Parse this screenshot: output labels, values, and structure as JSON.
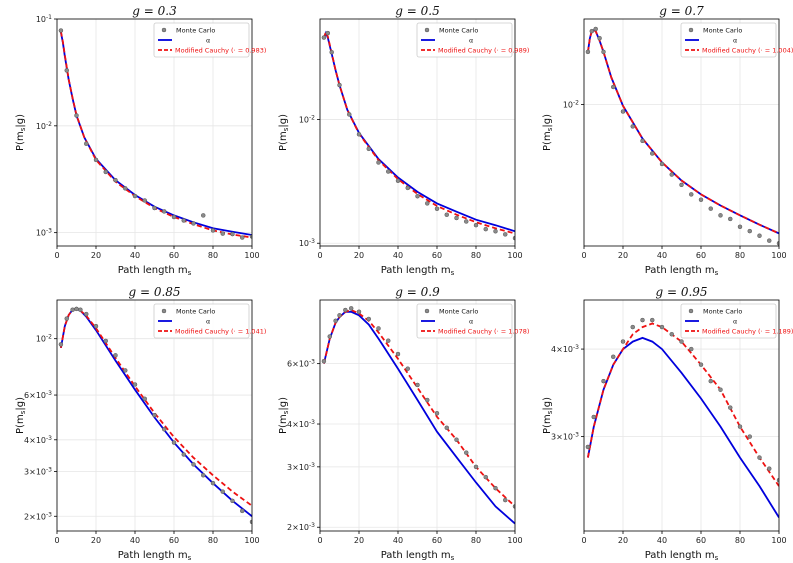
{
  "chart_data": [
    {
      "type": "line",
      "title": "g = 0.3",
      "g": 0.3,
      "xlabel": "Path length m_s",
      "ylabel": "P(m_s|g)",
      "xlim": [
        0,
        100
      ],
      "ylim": [
        0.00075,
        0.1
      ],
      "yscale": "log",
      "xticks": [
        0,
        20,
        40,
        60,
        80,
        100
      ],
      "yticks": [
        {
          "value": 0.1,
          "label": "10^-1"
        },
        {
          "value": 0.01,
          "label": "10^-2"
        },
        {
          "value": 0.001,
          "label": "10^-3"
        }
      ],
      "legend": {
        "position": "top-right",
        "entries": [
          "Monte Carlo",
          "α",
          "Modified Cauchy (· = 0.983)"
        ]
      },
      "series": [
        {
          "name": "α",
          "color": "#0000dd",
          "style": "solid",
          "x": [
            2,
            3,
            4,
            6,
            8,
            10,
            14,
            20,
            30,
            40,
            50,
            60,
            70,
            80,
            90,
            100
          ],
          "values": [
            0.075,
            0.06,
            0.045,
            0.027,
            0.018,
            0.0125,
            0.0078,
            0.0049,
            0.0031,
            0.00225,
            0.00175,
            0.00145,
            0.00125,
            0.0011,
            0.00102,
            0.00095
          ]
        },
        {
          "name": "Modified Cauchy (· = 0.983)",
          "color": "#ee1111",
          "style": "dashed",
          "x": [
            2,
            3,
            4,
            6,
            8,
            10,
            14,
            20,
            30,
            40,
            50,
            60,
            70,
            80,
            90,
            100
          ],
          "values": [
            0.076,
            0.061,
            0.046,
            0.0272,
            0.0182,
            0.0126,
            0.0078,
            0.0048,
            0.003,
            0.0022,
            0.0017,
            0.0014,
            0.0012,
            0.00105,
            0.00096,
            0.0009
          ]
        },
        {
          "name": "Monte Carlo",
          "color": "#777777",
          "style": "markers",
          "x": [
            2,
            5,
            10,
            15,
            20,
            25,
            30,
            35,
            40,
            45,
            50,
            55,
            60,
            65,
            70,
            75,
            80,
            85,
            90,
            95,
            100
          ],
          "values": [
            0.078,
            0.033,
            0.0125,
            0.0068,
            0.0048,
            0.0037,
            0.0031,
            0.0026,
            0.0022,
            0.002,
            0.0017,
            0.00158,
            0.0014,
            0.0013,
            0.00122,
            0.00145,
            0.00105,
            0.00098,
            0.00097,
            0.0009,
            0.00092
          ]
        }
      ]
    },
    {
      "type": "line",
      "title": "g = 0.5",
      "g": 0.5,
      "xlabel": "Path length m_s",
      "ylabel": "P(m_s|g)",
      "xlim": [
        0,
        100
      ],
      "ylim": [
        0.00095,
        0.065
      ],
      "yscale": "log",
      "xticks": [
        0,
        20,
        40,
        60,
        80,
        100
      ],
      "yticks": [
        {
          "value": 0.01,
          "label": "10^-2"
        },
        {
          "value": 0.001,
          "label": "10^-3"
        }
      ],
      "legend": {
        "position": "top-right",
        "entries": [
          "Monte Carlo",
          "α",
          "Modified Cauchy (· = 0.989)"
        ]
      },
      "series": [
        {
          "name": "α",
          "color": "#0000dd",
          "style": "solid",
          "x": [
            2,
            3,
            4,
            6,
            8,
            10,
            14,
            20,
            30,
            40,
            50,
            60,
            70,
            80,
            90,
            100
          ],
          "values": [
            0.045,
            0.05,
            0.046,
            0.034,
            0.025,
            0.019,
            0.012,
            0.0078,
            0.0048,
            0.0034,
            0.0026,
            0.0021,
            0.0018,
            0.00155,
            0.0014,
            0.00125
          ]
        },
        {
          "name": "Modified Cauchy (· = 0.989)",
          "color": "#ee1111",
          "style": "dashed",
          "x": [
            2,
            3,
            4,
            6,
            8,
            10,
            14,
            20,
            30,
            40,
            50,
            60,
            70,
            80,
            90,
            100
          ],
          "values": [
            0.046,
            0.051,
            0.047,
            0.0345,
            0.025,
            0.019,
            0.012,
            0.0077,
            0.0047,
            0.0033,
            0.0025,
            0.002,
            0.0017,
            0.00148,
            0.00132,
            0.0012
          ]
        },
        {
          "name": "Monte Carlo",
          "color": "#777777",
          "style": "markers",
          "x": [
            2,
            4,
            6,
            10,
            15,
            20,
            25,
            30,
            35,
            40,
            45,
            50,
            55,
            60,
            65,
            70,
            75,
            80,
            85,
            90,
            95,
            100
          ],
          "values": [
            0.046,
            0.05,
            0.035,
            0.019,
            0.011,
            0.0076,
            0.0058,
            0.0045,
            0.0038,
            0.0032,
            0.0028,
            0.0024,
            0.0021,
            0.0019,
            0.0017,
            0.0016,
            0.0015,
            0.0014,
            0.0013,
            0.00125,
            0.00118,
            0.0011
          ]
        }
      ]
    },
    {
      "type": "line",
      "title": "g = 0.7",
      "g": 0.7,
      "xlabel": "Path length m_s",
      "ylabel": "P(m_s|g)",
      "xlim": [
        0,
        100
      ],
      "ylim": [
        0.0012,
        0.036
      ],
      "yscale": "log",
      "xticks": [
        0,
        20,
        40,
        60,
        80,
        100
      ],
      "yticks": [
        {
          "value": 0.01,
          "label": "10^-2"
        }
      ],
      "legend": {
        "position": "top-right",
        "entries": [
          "Monte Carlo",
          "α",
          "Modified Cauchy (· = 1.004)"
        ]
      },
      "series": [
        {
          "name": "α",
          "color": "#0000dd",
          "style": "solid",
          "x": [
            2,
            3,
            4,
            5,
            6,
            8,
            10,
            14,
            20,
            30,
            40,
            50,
            60,
            70,
            80,
            90,
            100
          ],
          "values": [
            0.022,
            0.027,
            0.03,
            0.0305,
            0.03,
            0.026,
            0.022,
            0.015,
            0.0098,
            0.006,
            0.0042,
            0.0032,
            0.0026,
            0.0022,
            0.0019,
            0.00165,
            0.00145
          ]
        },
        {
          "name": "Modified Cauchy (· = 1.004)",
          "color": "#ee1111",
          "style": "dashed",
          "x": [
            2,
            3,
            4,
            5,
            6,
            8,
            10,
            14,
            20,
            30,
            40,
            50,
            60,
            70,
            80,
            90,
            100
          ],
          "values": [
            0.022,
            0.027,
            0.03,
            0.0305,
            0.03,
            0.026,
            0.022,
            0.015,
            0.0098,
            0.006,
            0.0042,
            0.0032,
            0.0026,
            0.0022,
            0.0019,
            0.00165,
            0.00145
          ]
        },
        {
          "name": "Monte Carlo",
          "color": "#777777",
          "style": "markers",
          "x": [
            2,
            4,
            6,
            8,
            10,
            15,
            20,
            25,
            30,
            35,
            40,
            45,
            50,
            55,
            60,
            65,
            70,
            75,
            80,
            85,
            90,
            95,
            100
          ],
          "values": [
            0.022,
            0.03,
            0.031,
            0.027,
            0.022,
            0.013,
            0.009,
            0.0072,
            0.0058,
            0.0048,
            0.0041,
            0.0035,
            0.003,
            0.0026,
            0.0024,
            0.0021,
            0.0019,
            0.0018,
            0.0016,
            0.0015,
            0.0014,
            0.0013,
            0.00125
          ]
        }
      ]
    },
    {
      "type": "line",
      "title": "g = 0.85",
      "g": 0.85,
      "xlabel": "Path length m_s",
      "ylabel": "P(m_s|g)",
      "xlim": [
        0,
        100
      ],
      "ylim": [
        0.00175,
        0.0142
      ],
      "yscale": "log",
      "xticks": [
        0,
        20,
        40,
        60,
        80,
        100
      ],
      "yticks": [
        {
          "value": 0.01,
          "label": "10^-2"
        },
        {
          "value": 0.006,
          "label": "6×10^-3"
        },
        {
          "value": 0.004,
          "label": "4×10^-3"
        },
        {
          "value": 0.003,
          "label": "3×10^-3"
        },
        {
          "value": 0.002,
          "label": "2×10^-3"
        }
      ],
      "legend": {
        "position": "top-right",
        "entries": [
          "Monte Carlo",
          "α",
          "Modified Cauchy (· = 1.041)"
        ]
      },
      "series": [
        {
          "name": "α",
          "color": "#0000dd",
          "style": "solid",
          "x": [
            2,
            4,
            6,
            8,
            10,
            12,
            15,
            20,
            30,
            40,
            50,
            60,
            70,
            80,
            90,
            100
          ],
          "values": [
            0.0092,
            0.0112,
            0.0124,
            0.013,
            0.0131,
            0.0129,
            0.0122,
            0.0108,
            0.0082,
            0.0063,
            0.0049,
            0.0039,
            0.0032,
            0.0027,
            0.0023,
            0.002
          ]
        },
        {
          "name": "Modified Cauchy (· = 1.041)",
          "color": "#ee1111",
          "style": "dashed",
          "x": [
            2,
            4,
            6,
            8,
            10,
            12,
            15,
            20,
            30,
            40,
            50,
            60,
            70,
            80,
            90,
            100
          ],
          "values": [
            0.0092,
            0.0112,
            0.0124,
            0.013,
            0.0131,
            0.0129,
            0.0123,
            0.011,
            0.0084,
            0.0065,
            0.0051,
            0.0041,
            0.0034,
            0.0029,
            0.0025,
            0.0022
          ]
        },
        {
          "name": "Monte Carlo",
          "color": "#777777",
          "style": "markers",
          "x": [
            2,
            5,
            8,
            10,
            12,
            15,
            20,
            25,
            30,
            35,
            40,
            45,
            50,
            55,
            60,
            65,
            70,
            75,
            80,
            85,
            90,
            95,
            100
          ],
          "values": [
            0.0095,
            0.012,
            0.013,
            0.0131,
            0.013,
            0.0125,
            0.0112,
            0.0098,
            0.0086,
            0.0075,
            0.0066,
            0.0058,
            0.005,
            0.0044,
            0.0039,
            0.0035,
            0.0032,
            0.0029,
            0.0027,
            0.0025,
            0.0023,
            0.0021,
            0.0019
          ]
        }
      ]
    },
    {
      "type": "line",
      "title": "g = 0.9",
      "g": 0.9,
      "xlabel": "Path length m_s",
      "ylabel": "P(m_s|g)",
      "xlim": [
        0,
        100
      ],
      "ylim": [
        0.00195,
        0.0092
      ],
      "yscale": "log",
      "xticks": [
        0,
        20,
        40,
        60,
        80,
        100
      ],
      "yticks": [
        {
          "value": 0.006,
          "label": "6×10^-3"
        },
        {
          "value": 0.004,
          "label": "4×10^-3"
        },
        {
          "value": 0.003,
          "label": "3×10^-3"
        },
        {
          "value": 0.002,
          "label": "2×10^-3"
        }
      ],
      "legend": {
        "position": "top-right",
        "entries": [
          "Monte Carlo",
          "α",
          "Modified Cauchy (· = 1.078)"
        ]
      },
      "series": [
        {
          "name": "α",
          "color": "#0000dd",
          "style": "solid",
          "x": [
            2,
            5,
            8,
            10,
            13,
            16,
            20,
            25,
            30,
            40,
            50,
            60,
            70,
            80,
            90,
            100
          ],
          "values": [
            0.006,
            0.0071,
            0.0079,
            0.0082,
            0.0085,
            0.0085,
            0.0083,
            0.0078,
            0.0071,
            0.0058,
            0.0047,
            0.0038,
            0.0032,
            0.0027,
            0.0023,
            0.00205
          ]
        },
        {
          "name": "Modified Cauchy (· = 1.078)",
          "color": "#ee1111",
          "style": "dashed",
          "x": [
            2,
            5,
            8,
            10,
            13,
            16,
            20,
            25,
            30,
            40,
            50,
            60,
            70,
            80,
            90,
            100
          ],
          "values": [
            0.006,
            0.0071,
            0.0079,
            0.0082,
            0.0085,
            0.0086,
            0.0084,
            0.008,
            0.0074,
            0.0062,
            0.0051,
            0.0042,
            0.0036,
            0.003,
            0.0026,
            0.0023
          ]
        },
        {
          "name": "Monte Carlo",
          "color": "#777777",
          "style": "markers",
          "x": [
            2,
            5,
            8,
            10,
            13,
            16,
            20,
            25,
            30,
            35,
            40,
            45,
            50,
            55,
            60,
            65,
            70,
            75,
            80,
            85,
            90,
            95,
            100
          ],
          "values": [
            0.0061,
            0.0072,
            0.008,
            0.0083,
            0.0086,
            0.0087,
            0.0085,
            0.0081,
            0.0076,
            0.007,
            0.0064,
            0.0058,
            0.0052,
            0.0047,
            0.0043,
            0.0039,
            0.0036,
            0.0033,
            0.003,
            0.0028,
            0.0026,
            0.0024,
            0.0023
          ]
        }
      ]
    },
    {
      "type": "line",
      "title": "g = 0.95",
      "g": 0.95,
      "xlabel": "Path length m_s",
      "ylabel": "P(m_s|g)",
      "xlim": [
        0,
        100
      ],
      "ylim": [
        0.0022,
        0.0047
      ],
      "yscale": "log",
      "xticks": [
        0,
        20,
        40,
        60,
        80,
        100
      ],
      "yticks": [
        {
          "value": 0.004,
          "label": "4×10^-3"
        },
        {
          "value": 0.003,
          "label": "3×10^-3"
        }
      ],
      "legend": {
        "position": "top-right",
        "entries": [
          "Monte Carlo",
          "α",
          "Modified Cauchy (· = 1.189)"
        ]
      },
      "series": [
        {
          "name": "α",
          "color": "#0000dd",
          "style": "solid",
          "x": [
            2,
            5,
            10,
            15,
            20,
            25,
            30,
            35,
            40,
            50,
            60,
            70,
            80,
            90,
            100
          ],
          "values": [
            0.0028,
            0.0031,
            0.0035,
            0.0038,
            0.004,
            0.0041,
            0.00415,
            0.0041,
            0.004,
            0.0037,
            0.0034,
            0.0031,
            0.0028,
            0.00255,
            0.0023
          ]
        },
        {
          "name": "Modified Cauchy (· = 1.189)",
          "color": "#ee1111",
          "style": "dashed",
          "x": [
            2,
            5,
            10,
            15,
            20,
            25,
            30,
            35,
            40,
            50,
            60,
            70,
            80,
            90,
            100
          ],
          "values": [
            0.0028,
            0.0031,
            0.0035,
            0.0038,
            0.004,
            0.0042,
            0.0043,
            0.00435,
            0.0043,
            0.0041,
            0.0038,
            0.0035,
            0.0031,
            0.0028,
            0.00255
          ]
        },
        {
          "name": "Monte Carlo",
          "color": "#777777",
          "style": "markers",
          "x": [
            2,
            5,
            10,
            15,
            20,
            25,
            30,
            35,
            40,
            45,
            50,
            55,
            60,
            65,
            70,
            75,
            80,
            85,
            90,
            95,
            100
          ],
          "values": [
            0.0029,
            0.0032,
            0.0036,
            0.0039,
            0.0041,
            0.0043,
            0.0044,
            0.0044,
            0.0043,
            0.0042,
            0.0041,
            0.004,
            0.0038,
            0.0036,
            0.0035,
            0.0033,
            0.0031,
            0.003,
            0.0028,
            0.0027,
            0.0026
          ]
        }
      ]
    }
  ]
}
